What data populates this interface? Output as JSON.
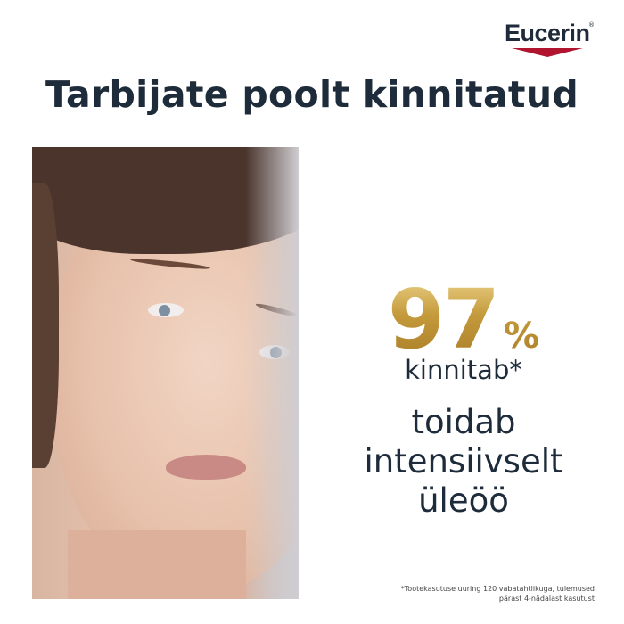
{
  "brand": {
    "name": "Eucerin",
    "registered": "®",
    "accent_color": "#b0142f"
  },
  "title": "Tarbijate poolt kinnitatud",
  "stat": {
    "value": "97",
    "unit": "%",
    "label": "kinnitab*",
    "gold_color": "#c49a3c"
  },
  "claim": {
    "lines": [
      "toidab",
      "intensiivselt",
      "üleöö"
    ]
  },
  "footnote": {
    "lines": [
      "*Tootekasutuse uuring 120 vabatahtlikuga, tulemused",
      "pärast 4-nädalast kasutust"
    ]
  }
}
